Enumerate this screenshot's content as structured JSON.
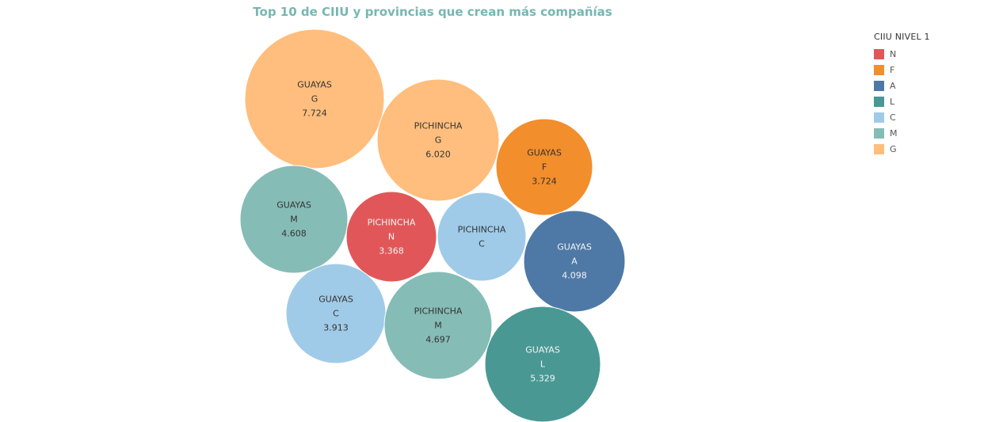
{
  "chart_data": {
    "type": "bubble",
    "title": "Top 10 de CIIU y provincias que crean más compañías",
    "legend": {
      "title": "CIIU NIVEL 1",
      "placement": "top-right",
      "items": [
        {
          "code": "N",
          "color": "#e15759"
        },
        {
          "code": "F",
          "color": "#f28e2b"
        },
        {
          "code": "A",
          "color": "#4e79a7"
        },
        {
          "code": "L",
          "color": "#499894"
        },
        {
          "code": "C",
          "color": "#a0cbe8"
        },
        {
          "code": "M",
          "color": "#86bcb6"
        },
        {
          "code": "G",
          "color": "#ffbe7d"
        }
      ]
    },
    "bubbles": [
      {
        "provincia": "GUAYAS",
        "ciiu": "G",
        "value": 7724,
        "value_label": "7.724"
      },
      {
        "provincia": "PICHINCHA",
        "ciiu": "G",
        "value": 6020,
        "value_label": "6.020"
      },
      {
        "provincia": "GUAYAS",
        "ciiu": "F",
        "value": 3724,
        "value_label": "3.724"
      },
      {
        "provincia": "GUAYAS",
        "ciiu": "M",
        "value": 4608,
        "value_label": "4.608"
      },
      {
        "provincia": "PICHINCHA",
        "ciiu": "N",
        "value": 3368,
        "value_label": "3.368"
      },
      {
        "provincia": "PICHINCHA",
        "ciiu": "C",
        "value": null,
        "value_label": ""
      },
      {
        "provincia": "GUAYAS",
        "ciiu": "A",
        "value": 4098,
        "value_label": "4.098"
      },
      {
        "provincia": "GUAYAS",
        "ciiu": "C",
        "value": 3913,
        "value_label": "3.913"
      },
      {
        "provincia": "PICHINCHA",
        "ciiu": "M",
        "value": 4697,
        "value_label": "4.697"
      },
      {
        "provincia": "GUAYAS",
        "ciiu": "L",
        "value": 5329,
        "value_label": "5.329"
      }
    ]
  },
  "colors": {
    "title": "#76b7b2",
    "label_dark": "#333333",
    "label_light": "#f4f4f4"
  }
}
